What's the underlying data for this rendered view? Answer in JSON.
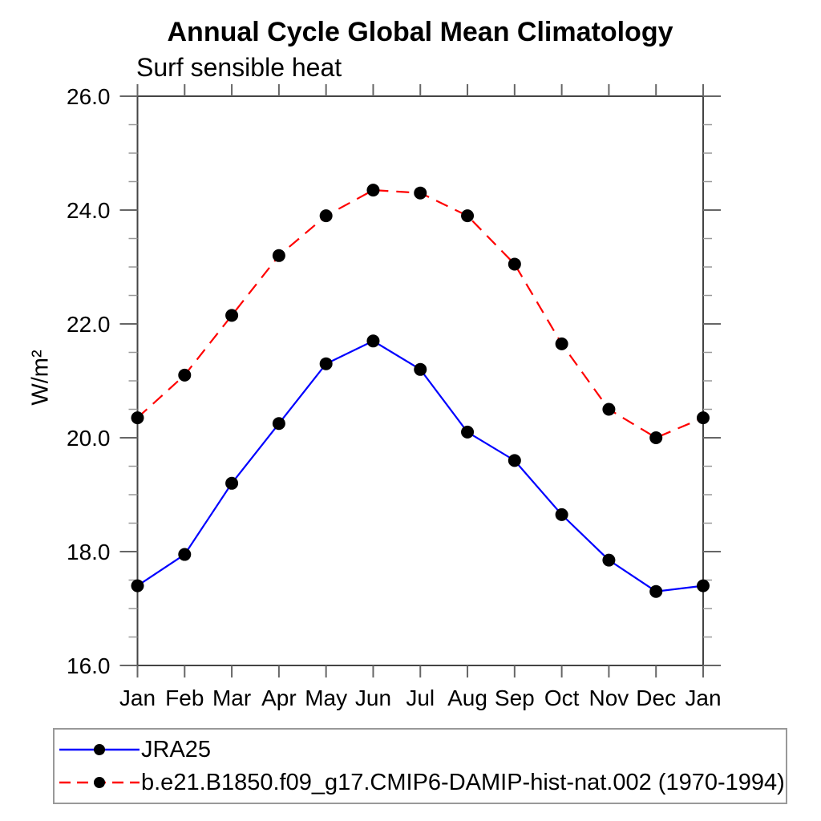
{
  "chart_data": {
    "type": "line",
    "title": "Annual Cycle Global Mean Climatology",
    "subtitle": "Surf sensible heat",
    "ylabel": "W/m²",
    "categories": [
      "Jan",
      "Feb",
      "Mar",
      "Apr",
      "May",
      "Jun",
      "Jul",
      "Aug",
      "Sep",
      "Oct",
      "Nov",
      "Dec",
      "Jan"
    ],
    "ylim": [
      16.0,
      26.0
    ],
    "ytick_major": 2.0,
    "ytick_minor": 0.5,
    "ytick_format_decimals": 1,
    "grid": false,
    "legend_position": "bottom",
    "marker_color": "#000000",
    "series": [
      {
        "name": "JRA25",
        "color": "#0000ff",
        "line_style": "solid",
        "dash": "none",
        "values": [
          17.4,
          17.95,
          19.2,
          20.25,
          21.3,
          21.7,
          21.2,
          20.1,
          19.6,
          18.65,
          17.85,
          17.3,
          17.4
        ]
      },
      {
        "name": "b.e21.B1850.f09_g17.CMIP6-DAMIP-hist-nat.002 (1970-1994)",
        "color": "#ff0000",
        "line_style": "dashed",
        "dash": "16 10",
        "values": [
          20.35,
          21.1,
          22.15,
          23.2,
          23.9,
          24.35,
          24.3,
          23.9,
          23.05,
          21.65,
          20.5,
          20.0,
          20.35
        ]
      }
    ]
  }
}
